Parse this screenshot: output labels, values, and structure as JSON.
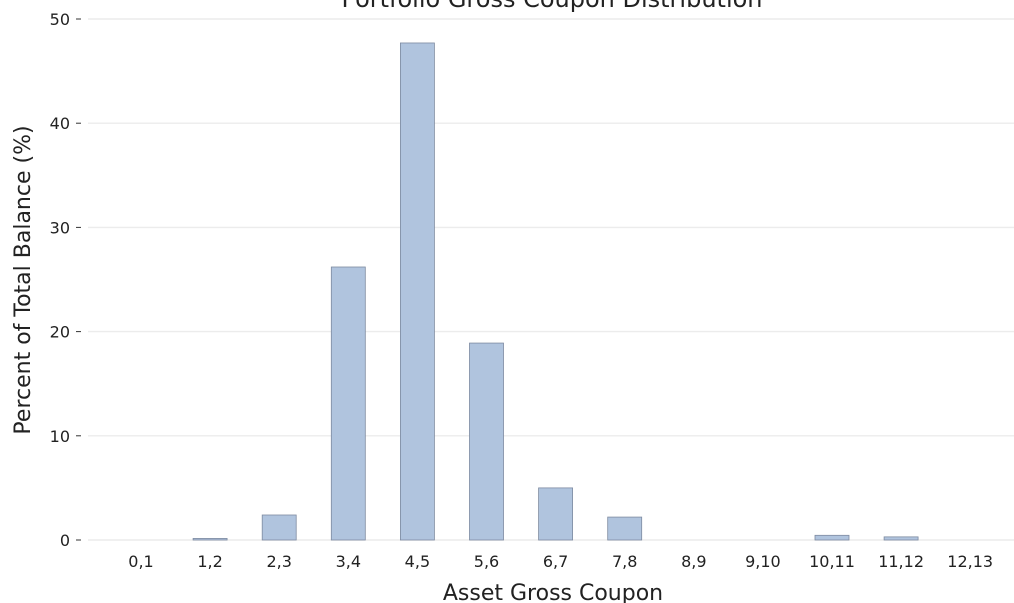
{
  "chart_data": {
    "type": "bar",
    "title": "Portfolio Gross Coupon Distribution",
    "xlabel": "Asset Gross Coupon",
    "ylabel": "Percent of Total Balance (%)",
    "categories": [
      "0,1",
      "1,2",
      "2,3",
      "3,4",
      "4,5",
      "5,6",
      "6,7",
      "7,8",
      "8,9",
      "9,10",
      "10,11",
      "11,12",
      "12,13"
    ],
    "values": [
      0,
      0.15,
      2.4,
      26.2,
      47.7,
      18.9,
      5.0,
      2.2,
      0,
      0,
      0.45,
      0.3,
      0
    ],
    "ylim": [
      0,
      50
    ],
    "yticks": [
      0,
      10,
      20,
      30,
      40,
      50
    ],
    "grid": "horizontal",
    "bar_color": "#b0c4de"
  }
}
